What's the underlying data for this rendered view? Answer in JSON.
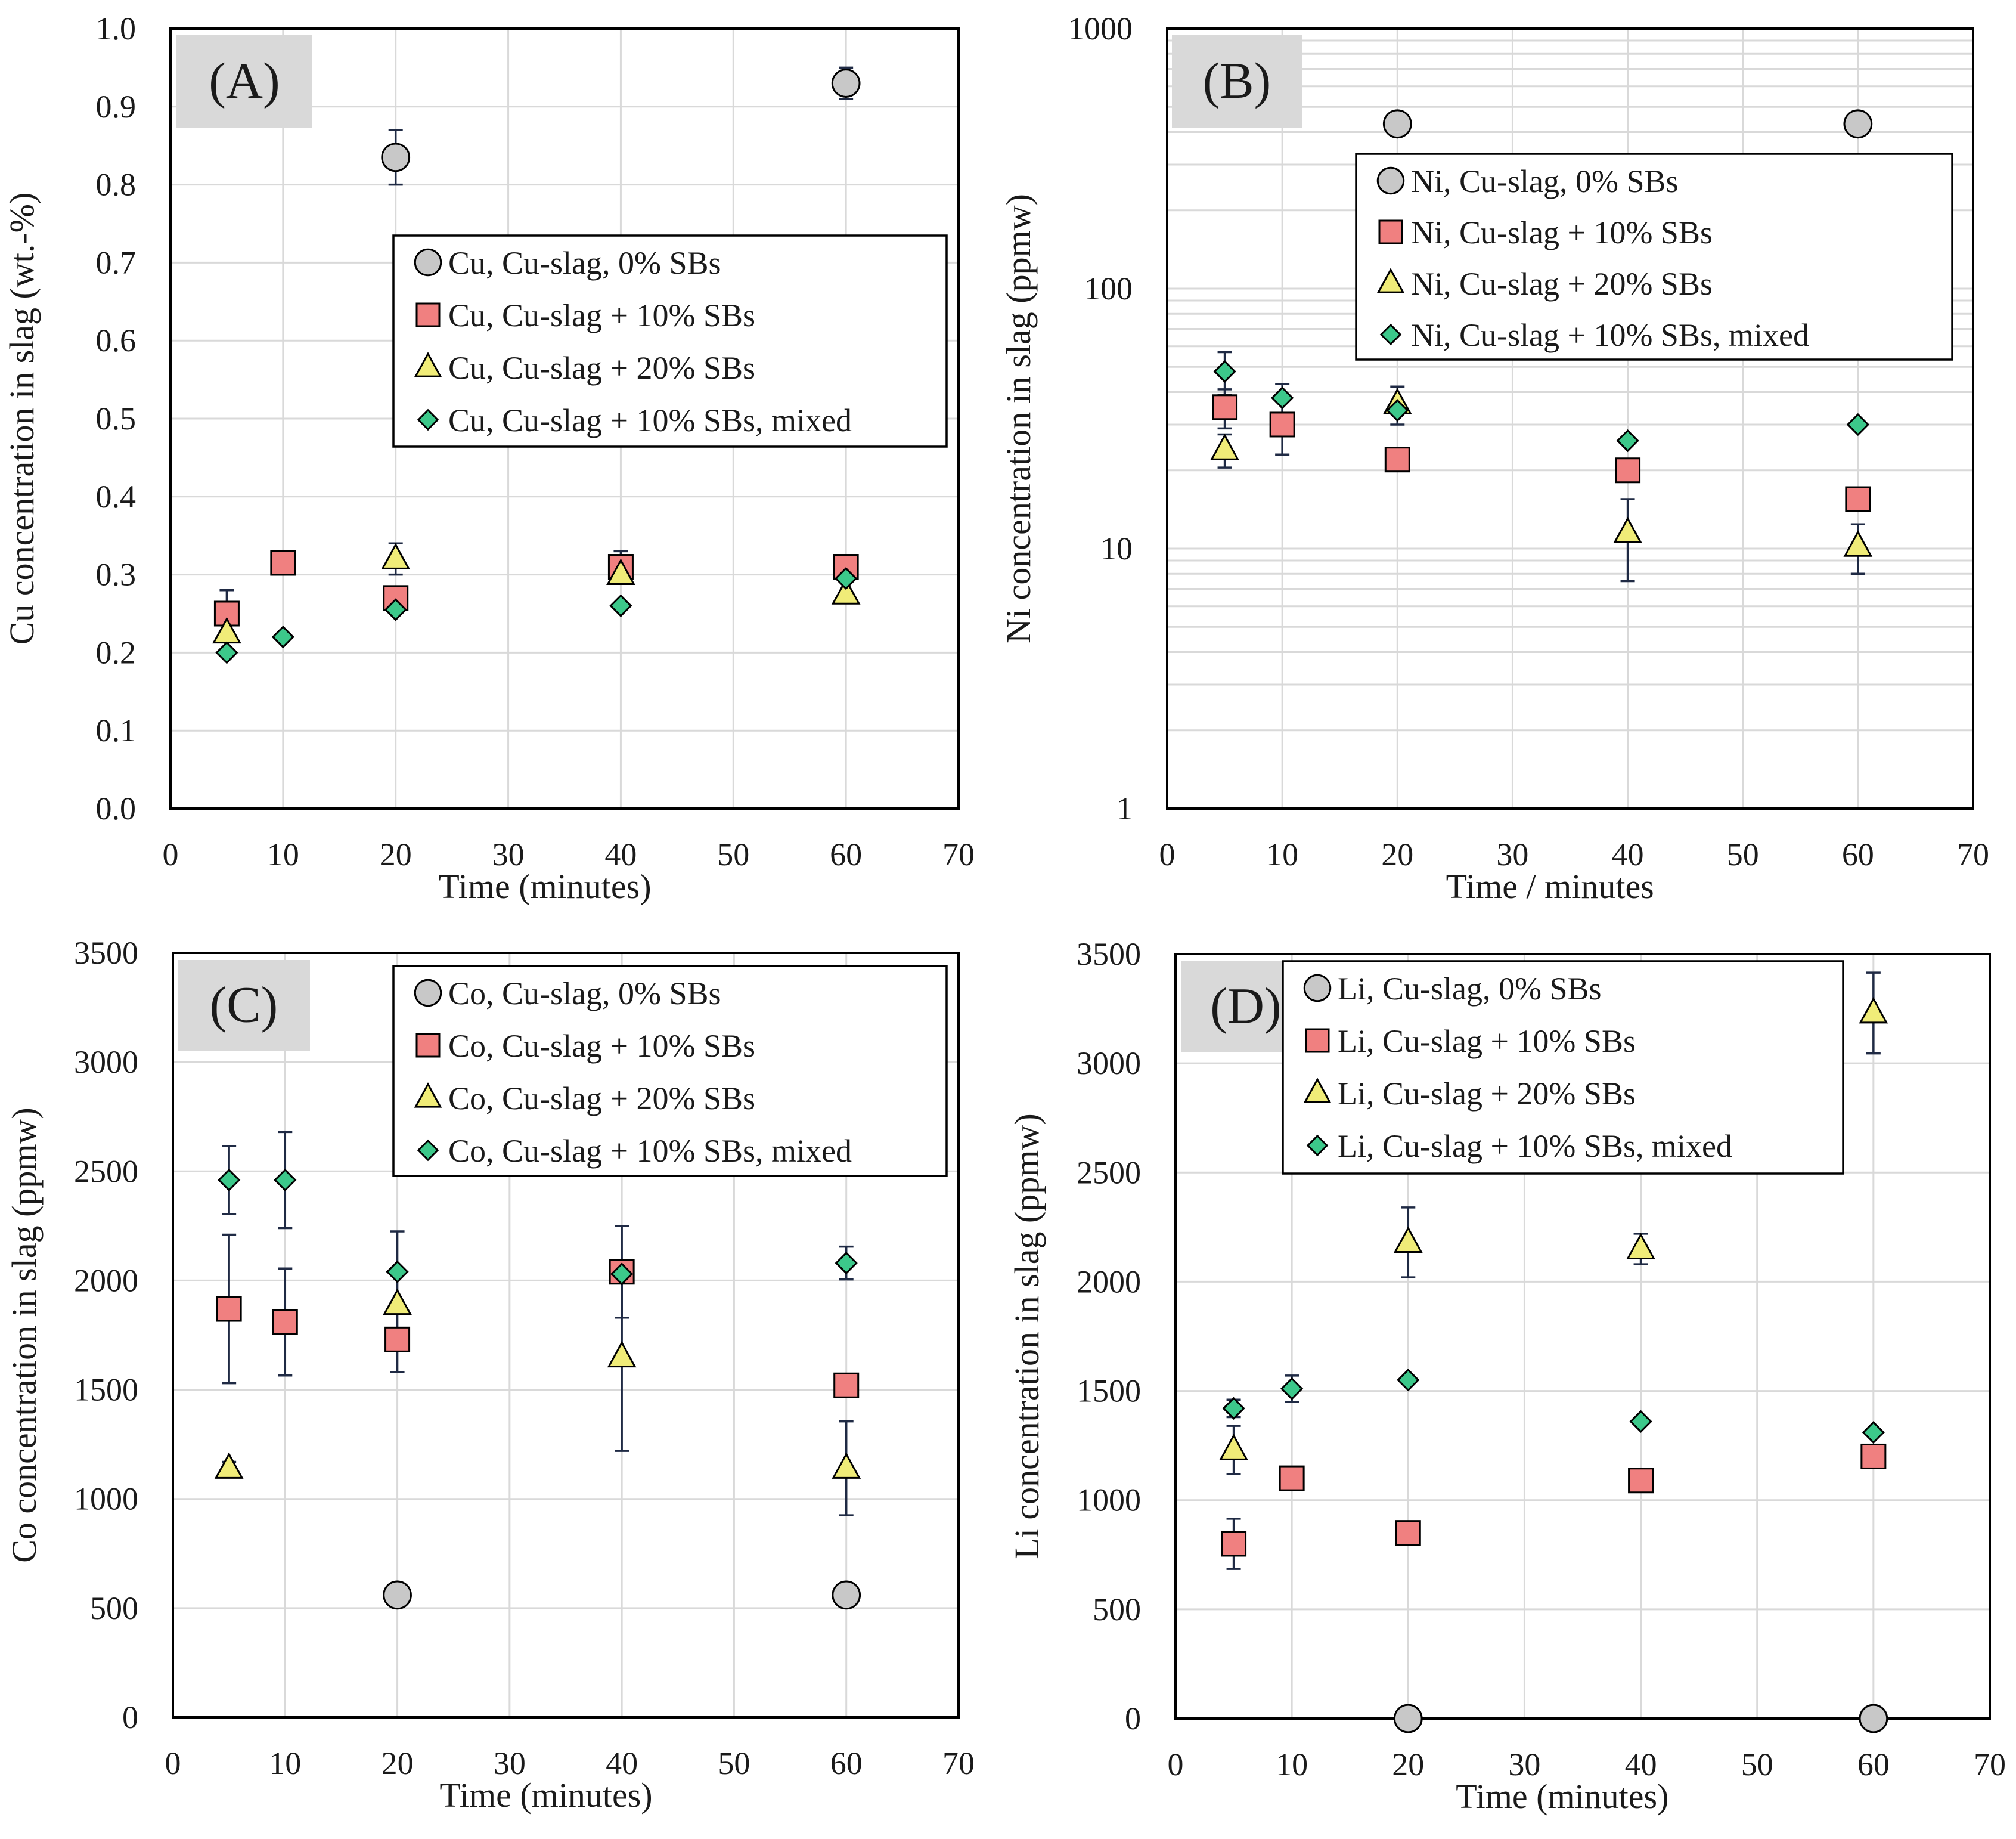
{
  "colors": {
    "series_0": "#c8c8c8",
    "series_10": "#f08080",
    "series_20": "#f0ec78",
    "series_mixed": "#3cc88a",
    "grid": "#d9d9d9",
    "label_box": "#d9d9d9",
    "axis": "#000000",
    "errorbar": "#1f2a44"
  },
  "chart_data": [
    {
      "type": "scatter",
      "panel_label": "(A)",
      "xlabel": "Time (minutes)",
      "ylabel": "Cu concentration in slag (wt.-%)",
      "xlim": [
        0,
        70
      ],
      "ylim": [
        0,
        1.0
      ],
      "yscale": "linear",
      "x_ticks": [
        0,
        10,
        20,
        30,
        40,
        50,
        60,
        70
      ],
      "x_tick_labels": [
        "0",
        "10",
        "20",
        "30",
        "40",
        "50",
        "60",
        "70"
      ],
      "y_ticks": [
        0,
        0.1,
        0.2,
        0.3,
        0.4,
        0.5,
        0.6,
        0.7,
        0.8,
        0.9,
        1.0
      ],
      "y_tick_labels": [
        "0.0",
        "0.1",
        "0.2",
        "0.3",
        "0.4",
        "0.5",
        "0.6",
        "0.7",
        "0.8",
        "0.9",
        "1.0"
      ],
      "grid": true,
      "legend_position": "upper-right",
      "series": [
        {
          "name": "Cu, Cu-slag, 0% SBs",
          "marker": "circle",
          "color": "#c8c8c8",
          "points": [
            {
              "x": 20,
              "y": 0.835,
              "err": 0.035
            },
            {
              "x": 60,
              "y": 0.93,
              "err": 0.02
            }
          ]
        },
        {
          "name": "Cu, Cu-slag + 10% SBs",
          "marker": "square",
          "color": "#f08080",
          "points": [
            {
              "x": 5,
              "y": 0.25,
              "err": 0.03
            },
            {
              "x": 10,
              "y": 0.315,
              "err": 0.0
            },
            {
              "x": 20,
              "y": 0.27,
              "err": 0.0
            },
            {
              "x": 40,
              "y": 0.31,
              "err": 0.02
            },
            {
              "x": 60,
              "y": 0.31,
              "err": 0.0
            }
          ]
        },
        {
          "name": "Cu, Cu-slag + 20% SBs",
          "marker": "triangle",
          "color": "#f0ec78",
          "points": [
            {
              "x": 5,
              "y": 0.225,
              "err": 0.0
            },
            {
              "x": 20,
              "y": 0.32,
              "err": 0.02
            },
            {
              "x": 40,
              "y": 0.3,
              "err": 0.0
            },
            {
              "x": 60,
              "y": 0.275,
              "err": 0.0
            }
          ]
        },
        {
          "name": "Cu, Cu-slag + 10% SBs, mixed",
          "marker": "diamond",
          "color": "#3cc88a",
          "points": [
            {
              "x": 5,
              "y": 0.2,
              "err": 0.0
            },
            {
              "x": 10,
              "y": 0.22,
              "err": 0.0
            },
            {
              "x": 20,
              "y": 0.255,
              "err": 0.0
            },
            {
              "x": 40,
              "y": 0.26,
              "err": 0.0
            },
            {
              "x": 60,
              "y": 0.295,
              "err": 0.0
            }
          ]
        }
      ]
    },
    {
      "type": "scatter",
      "panel_label": "(B)",
      "xlabel": "Time / minutes",
      "ylabel": "Ni concentration in slag (ppmw)",
      "xlim": [
        0,
        70
      ],
      "ylim": [
        1,
        1000
      ],
      "yscale": "log",
      "x_ticks": [
        0,
        10,
        20,
        30,
        40,
        50,
        60,
        70
      ],
      "x_tick_labels": [
        "0",
        "10",
        "20",
        "30",
        "40",
        "50",
        "60",
        "70"
      ],
      "y_ticks": [
        1,
        10,
        100,
        1000
      ],
      "y_tick_labels": [
        "1",
        "10",
        "100",
        "1000"
      ],
      "grid": true,
      "legend_position": "upper-right",
      "series": [
        {
          "name": "Ni, Cu-slag, 0% SBs",
          "marker": "circle",
          "color": "#c8c8c8",
          "points": [
            {
              "x": 20,
              "y": 430,
              "err": 0
            },
            {
              "x": 60,
              "y": 430,
              "err": 0
            }
          ]
        },
        {
          "name": "Ni, Cu-slag + 10% SBs",
          "marker": "square",
          "color": "#f08080",
          "points": [
            {
              "x": 5,
              "y": 35,
              "err": 6
            },
            {
              "x": 10,
              "y": 30,
              "err": 7
            },
            {
              "x": 20,
              "y": 22,
              "err": 0
            },
            {
              "x": 40,
              "y": 20,
              "err": 0
            },
            {
              "x": 60,
              "y": 15.5,
              "err": 1
            }
          ]
        },
        {
          "name": "Ni, Cu-slag + 20% SBs",
          "marker": "triangle",
          "color": "#f0ec78",
          "points": [
            {
              "x": 5,
              "y": 24,
              "err": 3.5
            },
            {
              "x": 20,
              "y": 36,
              "err": 6
            },
            {
              "x": 40,
              "y": 11.5,
              "err": 4
            },
            {
              "x": 60,
              "y": 10.2,
              "err": 2.2
            }
          ]
        },
        {
          "name": "Ni, Cu-slag + 10% SBs, mixed",
          "marker": "diamond",
          "color": "#3cc88a",
          "points": [
            {
              "x": 5,
              "y": 48,
              "err": 9
            },
            {
              "x": 10,
              "y": 38,
              "err": 5
            },
            {
              "x": 20,
              "y": 34,
              "err": 0
            },
            {
              "x": 40,
              "y": 26,
              "err": 0
            },
            {
              "x": 60,
              "y": 30,
              "err": 0
            }
          ]
        }
      ]
    },
    {
      "type": "scatter",
      "panel_label": "(C)",
      "xlabel": "Time (minutes)",
      "ylabel": "Co concentration in slag (ppmw)",
      "xlim": [
        0,
        70
      ],
      "ylim": [
        0,
        3500
      ],
      "yscale": "linear",
      "x_ticks": [
        0,
        10,
        20,
        30,
        40,
        50,
        60,
        70
      ],
      "x_tick_labels": [
        "0",
        "10",
        "20",
        "30",
        "40",
        "50",
        "60",
        "70"
      ],
      "y_ticks": [
        0,
        500,
        1000,
        1500,
        2000,
        2500,
        3000,
        3500
      ],
      "y_tick_labels": [
        "0",
        "500",
        "1000",
        "1500",
        "2000",
        "2500",
        "3000",
        "3500"
      ],
      "grid": true,
      "legend_position": "upper-right",
      "series": [
        {
          "name": "Co, Cu-slag, 0% SBs",
          "marker": "circle",
          "color": "#c8c8c8",
          "points": [
            {
              "x": 20,
              "y": 560,
              "err": 0
            },
            {
              "x": 60,
              "y": 560,
              "err": 0
            }
          ]
        },
        {
          "name": "Co, Cu-slag + 10% SBs",
          "marker": "square",
          "color": "#f08080",
          "points": [
            {
              "x": 5,
              "y": 1870,
              "err": 340
            },
            {
              "x": 10,
              "y": 1810,
              "err": 245
            },
            {
              "x": 20,
              "y": 1730,
              "err": 150
            },
            {
              "x": 40,
              "y": 2040,
              "err": 210
            },
            {
              "x": 60,
              "y": 1520,
              "err": 40
            }
          ]
        },
        {
          "name": "Co, Cu-slag + 20% SBs",
          "marker": "triangle",
          "color": "#f0ec78",
          "points": [
            {
              "x": 5,
              "y": 1140,
              "err": 30
            },
            {
              "x": 20,
              "y": 1890,
              "err": 0
            },
            {
              "x": 40,
              "y": 1650,
              "err": 430
            },
            {
              "x": 60,
              "y": 1140,
              "err": 215
            }
          ]
        },
        {
          "name": "Co, Cu-slag + 10% SBs, mixed",
          "marker": "diamond",
          "color": "#3cc88a",
          "points": [
            {
              "x": 5,
              "y": 2460,
              "err": 155
            },
            {
              "x": 10,
              "y": 2460,
              "err": 220
            },
            {
              "x": 20,
              "y": 2040,
              "err": 185
            },
            {
              "x": 40,
              "y": 2030,
              "err": 0
            },
            {
              "x": 60,
              "y": 2080,
              "err": 75
            }
          ]
        }
      ]
    },
    {
      "type": "scatter",
      "panel_label": "(D)",
      "xlabel": "Time (minutes)",
      "ylabel": "Li concentration in slag (ppmw)",
      "xlim": [
        0,
        70
      ],
      "ylim": [
        0,
        3500
      ],
      "yscale": "linear",
      "x_ticks": [
        0,
        10,
        20,
        30,
        40,
        50,
        60,
        70
      ],
      "x_tick_labels": [
        "0",
        "10",
        "20",
        "30",
        "40",
        "50",
        "60",
        "70"
      ],
      "y_ticks": [
        0,
        500,
        1000,
        1500,
        2000,
        2500,
        3000,
        3500
      ],
      "y_tick_labels": [
        "0",
        "500",
        "1000",
        "1500",
        "2000",
        "2500",
        "3000",
        "3500"
      ],
      "grid": true,
      "legend_position": "upper-right",
      "series": [
        {
          "name": "Li, Cu-slag, 0% SBs",
          "marker": "circle",
          "color": "#c8c8c8",
          "points": [
            {
              "x": 20,
              "y": 0,
              "err": 0
            },
            {
              "x": 60,
              "y": 0,
              "err": 0
            }
          ]
        },
        {
          "name": "Li, Cu-slag + 10% SBs",
          "marker": "square",
          "color": "#f08080",
          "points": [
            {
              "x": 5,
              "y": 800,
              "err": 115
            },
            {
              "x": 10,
              "y": 1100,
              "err": 30
            },
            {
              "x": 20,
              "y": 850,
              "err": 40
            },
            {
              "x": 40,
              "y": 1090,
              "err": 40
            },
            {
              "x": 60,
              "y": 1200,
              "err": 40
            }
          ]
        },
        {
          "name": "Li, Cu-slag + 20% SBs",
          "marker": "triangle",
          "color": "#f0ec78",
          "points": [
            {
              "x": 5,
              "y": 1230,
              "err": 110
            },
            {
              "x": 20,
              "y": 2180,
              "err": 160
            },
            {
              "x": 40,
              "y": 2150,
              "err": 70
            },
            {
              "x": 60,
              "y": 3230,
              "err": 185
            }
          ]
        },
        {
          "name": "Li, Cu-slag + 10% SBs, mixed",
          "marker": "diamond",
          "color": "#3cc88a",
          "points": [
            {
              "x": 5,
              "y": 1420,
              "err": 40
            },
            {
              "x": 10,
              "y": 1510,
              "err": 60
            },
            {
              "x": 20,
              "y": 1550,
              "err": 0
            },
            {
              "x": 40,
              "y": 1360,
              "err": 0
            },
            {
              "x": 60,
              "y": 1310,
              "err": 0
            }
          ]
        }
      ]
    }
  ]
}
